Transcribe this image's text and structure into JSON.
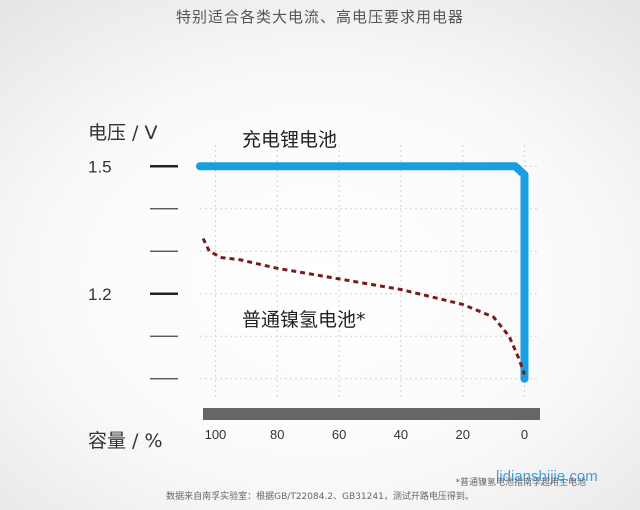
{
  "headline": "特别适合各类大电流、高电压要求用电器",
  "footnote": "*普通镍氢电池指南孚超用主电池",
  "source_note": "数据来自南孚实验室：根据GB/T22084.2、GB31241，测试开路电压得到。",
  "watermark": "lidianshijie.com",
  "chart_data": {
    "type": "line",
    "xlabel": "容量 / %",
    "ylabel": "电压 / V",
    "x_ticks": [
      100,
      80,
      60,
      40,
      20,
      0
    ],
    "xlim": [
      105,
      -5
    ],
    "y_ticks_labeled": [
      {
        "value": 1.5,
        "label": "1.5"
      },
      {
        "value": 1.2,
        "label": "1.2"
      }
    ],
    "y_tick_marks": [
      1.5,
      1.4,
      1.3,
      1.2,
      1.1,
      1.0
    ],
    "ylim": [
      0.95,
      1.55
    ],
    "grid": true,
    "series": [
      {
        "name": "充电锂电池",
        "style": "solid",
        "color": "#1a9ee0",
        "x": [
          105,
          80,
          60,
          40,
          20,
          3,
          0,
          0,
          0
        ],
        "y": [
          1.5,
          1.5,
          1.5,
          1.5,
          1.5,
          1.5,
          1.48,
          1.3,
          1.0
        ]
      },
      {
        "name": "普通镍氢电池*",
        "style": "dashed",
        "color": "#7a1a1a",
        "x": [
          104,
          102,
          98,
          92,
          80,
          60,
          40,
          20,
          10,
          5,
          2,
          0
        ],
        "y": [
          1.33,
          1.3,
          1.285,
          1.28,
          1.26,
          1.235,
          1.21,
          1.175,
          1.145,
          1.1,
          1.05,
          1.01
        ]
      }
    ]
  }
}
